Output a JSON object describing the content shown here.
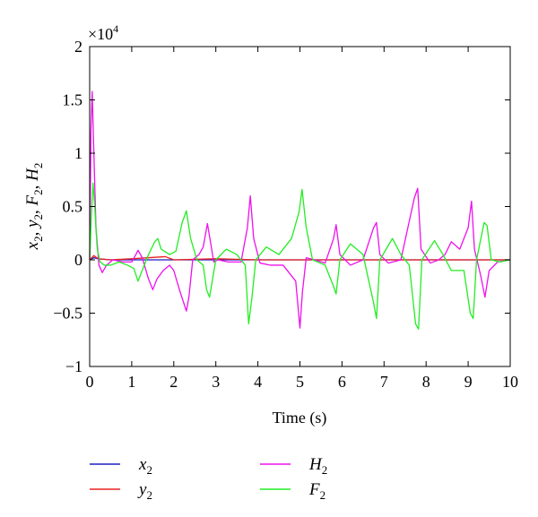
{
  "chart_data": {
    "type": "line",
    "title": "",
    "xlabel": "Time (s)",
    "ylabel": "x2, y2, F2, H2",
    "ylabel_parts": [
      {
        "base": "x",
        "sub": "2",
        "sep": ", "
      },
      {
        "base": "y",
        "sub": "2",
        "sep": ", "
      },
      {
        "base": "F",
        "sub": "2",
        "sep": ", "
      },
      {
        "base": "H",
        "sub": "2",
        "sep": ""
      }
    ],
    "y_scale_factor": "×10",
    "y_scale_exponent": "4",
    "xlim": [
      0,
      10
    ],
    "ylim": [
      -1,
      2
    ],
    "x_ticks": [
      0,
      1,
      2,
      3,
      4,
      5,
      6,
      7,
      8,
      9,
      10
    ],
    "x_tick_labels": [
      "0",
      "1",
      "2",
      "3",
      "4",
      "5",
      "6",
      "7",
      "8",
      "9",
      "10"
    ],
    "y_ticks": [
      -1,
      -0.5,
      0,
      0.5,
      1,
      1.5,
      2
    ],
    "y_tick_labels": [
      "−1",
      "−0.5",
      "0",
      "0.5",
      "1",
      "1.5",
      "2"
    ],
    "grid": false,
    "legend_position": "bottom",
    "series": [
      {
        "name": "x2",
        "label_base": "x",
        "label_sub": "2",
        "color": "#1f1fbf",
        "x": [
          0,
          0.05,
          0.1,
          0.2,
          0.5,
          1,
          2,
          3,
          4,
          5,
          6,
          7,
          8,
          9,
          10
        ],
        "values": [
          0,
          0.01,
          0.02,
          0.01,
          0.0,
          0.0,
          0.0,
          0.0,
          0.0,
          0.0,
          0.0,
          0.0,
          0.0,
          0.0,
          0.0
        ]
      },
      {
        "name": "y2",
        "label_base": "y",
        "label_sub": "2",
        "color": "#e8201e",
        "x": [
          0,
          0.05,
          0.1,
          0.2,
          0.5,
          1,
          1.8,
          2,
          3,
          4,
          5,
          6,
          7,
          8,
          9,
          10
        ],
        "values": [
          0,
          0.02,
          0.04,
          0.01,
          0.0,
          0.01,
          0.03,
          0.0,
          0.01,
          0.0,
          0.0,
          0.0,
          0.0,
          0.0,
          0.0,
          0.0
        ]
      },
      {
        "name": "H2",
        "label_base": "H",
        "label_sub": "2",
        "color": "#ee11ee",
        "x": [
          0,
          0.03,
          0.06,
          0.1,
          0.15,
          0.22,
          0.3,
          0.4,
          0.55,
          0.8,
          1.0,
          1.1,
          1.15,
          1.25,
          1.4,
          1.5,
          1.6,
          1.75,
          1.9,
          2.0,
          2.15,
          2.3,
          2.36,
          2.45,
          2.6,
          2.7,
          2.8,
          2.88,
          2.95,
          3.05,
          3.3,
          3.6,
          3.75,
          3.82,
          3.9,
          4.05,
          4.3,
          4.6,
          4.9,
          5.0,
          5.06,
          5.15,
          5.35,
          5.6,
          5.8,
          5.86,
          5.95,
          6.2,
          6.5,
          6.75,
          6.82,
          6.9,
          7.1,
          7.4,
          7.72,
          7.8,
          7.88,
          8.1,
          8.3,
          8.45,
          8.6,
          8.8,
          9.0,
          9.08,
          9.15,
          9.3,
          9.4,
          9.5,
          9.7,
          10
        ],
        "values": [
          0,
          1.2,
          1.58,
          1.0,
          0.3,
          -0.05,
          -0.12,
          -0.05,
          0.0,
          -0.02,
          -0.02,
          0.05,
          0.09,
          0.02,
          -0.18,
          -0.28,
          -0.18,
          -0.1,
          -0.05,
          -0.1,
          -0.3,
          -0.48,
          -0.35,
          0.0,
          0.05,
          0.12,
          0.34,
          0.15,
          -0.02,
          0.0,
          -0.02,
          -0.02,
          0.3,
          0.6,
          0.2,
          -0.03,
          -0.05,
          -0.05,
          -0.2,
          -0.64,
          -0.3,
          0.02,
          0.0,
          -0.03,
          0.2,
          0.33,
          0.05,
          -0.05,
          0.0,
          0.3,
          0.35,
          0.05,
          -0.03,
          0.0,
          0.58,
          0.67,
          0.1,
          -0.03,
          0.0,
          0.05,
          0.17,
          0.1,
          0.3,
          0.55,
          0.1,
          -0.15,
          -0.35,
          -0.1,
          -0.02,
          0.0
        ]
      },
      {
        "name": "F2",
        "label_base": "F",
        "label_sub": "2",
        "color": "#22ee22",
        "x": [
          0,
          0.04,
          0.08,
          0.12,
          0.18,
          0.25,
          0.35,
          0.5,
          0.7,
          0.9,
          1.05,
          1.15,
          1.25,
          1.4,
          1.55,
          1.62,
          1.7,
          1.9,
          2.05,
          2.2,
          2.3,
          2.4,
          2.55,
          2.7,
          2.78,
          2.85,
          3.0,
          3.25,
          3.5,
          3.7,
          3.78,
          3.86,
          3.95,
          4.2,
          4.5,
          4.8,
          4.98,
          5.05,
          5.15,
          5.3,
          5.6,
          5.8,
          5.86,
          5.95,
          6.2,
          6.5,
          6.75,
          6.82,
          6.9,
          7.2,
          7.4,
          7.6,
          7.75,
          7.82,
          7.9,
          8.2,
          8.4,
          8.6,
          8.9,
          9.05,
          9.12,
          9.2,
          9.38,
          9.45,
          9.55,
          9.75,
          10
        ],
        "values": [
          0,
          0.4,
          0.72,
          0.5,
          0.1,
          -0.02,
          -0.05,
          -0.05,
          -0.02,
          -0.05,
          -0.08,
          -0.2,
          -0.1,
          0.05,
          0.17,
          0.2,
          0.1,
          0.05,
          0.08,
          0.35,
          0.46,
          0.2,
          0.0,
          -0.05,
          -0.28,
          -0.35,
          0.0,
          0.1,
          0.05,
          -0.05,
          -0.6,
          -0.35,
          0.0,
          0.12,
          0.05,
          0.2,
          0.45,
          0.66,
          0.3,
          0.0,
          -0.05,
          -0.25,
          -0.32,
          0.0,
          0.15,
          0.05,
          -0.4,
          -0.55,
          0.0,
          0.2,
          0.05,
          -0.05,
          -0.6,
          -0.65,
          0.0,
          0.18,
          0.05,
          -0.1,
          -0.1,
          -0.5,
          -0.55,
          0.0,
          0.35,
          0.32,
          0.0,
          -0.02,
          0.0
        ]
      }
    ]
  }
}
